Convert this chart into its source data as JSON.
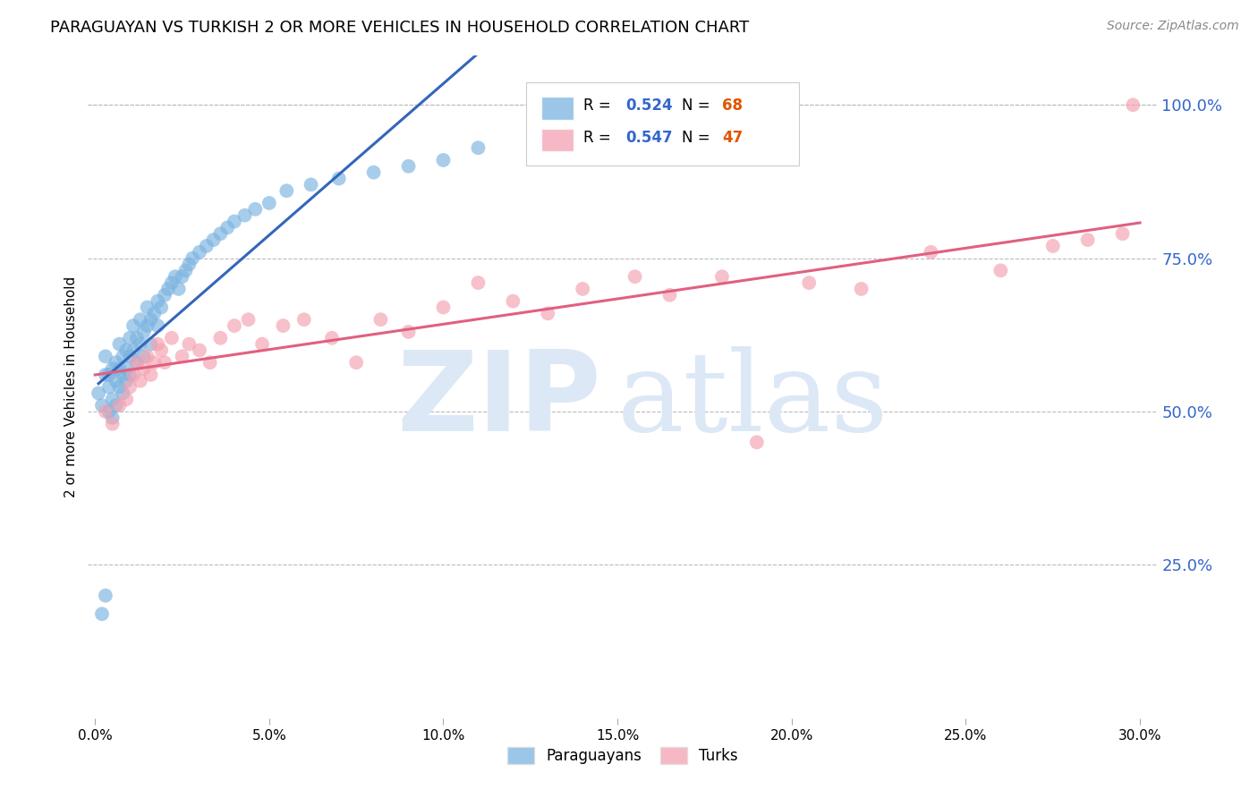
{
  "title": "PARAGUAYAN VS TURKISH 2 OR MORE VEHICLES IN HOUSEHOLD CORRELATION CHART",
  "source": "Source: ZipAtlas.com",
  "ylabel": "2 or more Vehicles in Household",
  "xlabel_ticks": [
    "0.0%",
    "5.0%",
    "10.0%",
    "15.0%",
    "20.0%",
    "25.0%",
    "30.0%"
  ],
  "xlabel_vals": [
    0.0,
    0.05,
    0.1,
    0.15,
    0.2,
    0.25,
    0.3
  ],
  "ylabel_ticks_right": [
    "100.0%",
    "75.0%",
    "50.0%",
    "25.0%"
  ],
  "ylabel_vals_right": [
    1.0,
    0.75,
    0.5,
    0.25
  ],
  "xlim": [
    -0.002,
    0.305
  ],
  "ylim": [
    0.0,
    1.08
  ],
  "paraguayan_R": "0.524",
  "paraguayan_N": "68",
  "turkish_R": "0.547",
  "turkish_N": "47",
  "blue_color": "#7ab3e0",
  "pink_color": "#f4a0b0",
  "blue_line_color": "#3366bb",
  "pink_line_color": "#e06080",
  "watermark_zip": "ZIP",
  "watermark_atlas": "atlas",
  "watermark_color": "#dce8f5",
  "legend_R_color": "#3366cc",
  "legend_N_color": "#e05500",
  "paraguayan_x": [
    0.001,
    0.002,
    0.003,
    0.003,
    0.004,
    0.004,
    0.004,
    0.005,
    0.005,
    0.005,
    0.006,
    0.006,
    0.006,
    0.007,
    0.007,
    0.007,
    0.008,
    0.008,
    0.008,
    0.009,
    0.009,
    0.009,
    0.01,
    0.01,
    0.01,
    0.011,
    0.011,
    0.012,
    0.012,
    0.013,
    0.013,
    0.014,
    0.014,
    0.015,
    0.015,
    0.016,
    0.016,
    0.017,
    0.018,
    0.018,
    0.019,
    0.02,
    0.021,
    0.022,
    0.023,
    0.024,
    0.025,
    0.026,
    0.027,
    0.028,
    0.03,
    0.032,
    0.034,
    0.036,
    0.038,
    0.04,
    0.043,
    0.046,
    0.05,
    0.055,
    0.062,
    0.07,
    0.08,
    0.09,
    0.1,
    0.11,
    0.002,
    0.003
  ],
  "paraguayan_y": [
    0.53,
    0.51,
    0.56,
    0.59,
    0.54,
    0.5,
    0.56,
    0.57,
    0.52,
    0.49,
    0.51,
    0.55,
    0.58,
    0.54,
    0.57,
    0.61,
    0.56,
    0.59,
    0.53,
    0.57,
    0.6,
    0.55,
    0.59,
    0.62,
    0.56,
    0.6,
    0.64,
    0.62,
    0.58,
    0.61,
    0.65,
    0.63,
    0.59,
    0.64,
    0.67,
    0.65,
    0.61,
    0.66,
    0.68,
    0.64,
    0.67,
    0.69,
    0.7,
    0.71,
    0.72,
    0.7,
    0.72,
    0.73,
    0.74,
    0.75,
    0.76,
    0.77,
    0.78,
    0.79,
    0.8,
    0.81,
    0.82,
    0.83,
    0.84,
    0.86,
    0.87,
    0.88,
    0.89,
    0.9,
    0.91,
    0.93,
    0.17,
    0.2
  ],
  "turkish_x": [
    0.003,
    0.005,
    0.007,
    0.009,
    0.01,
    0.011,
    0.012,
    0.013,
    0.014,
    0.015,
    0.016,
    0.017,
    0.018,
    0.019,
    0.02,
    0.022,
    0.025,
    0.027,
    0.03,
    0.033,
    0.036,
    0.04,
    0.044,
    0.048,
    0.054,
    0.06,
    0.068,
    0.075,
    0.082,
    0.09,
    0.1,
    0.11,
    0.12,
    0.13,
    0.14,
    0.155,
    0.165,
    0.18,
    0.19,
    0.205,
    0.22,
    0.24,
    0.26,
    0.275,
    0.285,
    0.295,
    0.298
  ],
  "turkish_y": [
    0.5,
    0.48,
    0.51,
    0.52,
    0.54,
    0.56,
    0.58,
    0.55,
    0.57,
    0.59,
    0.56,
    0.58,
    0.61,
    0.6,
    0.58,
    0.62,
    0.59,
    0.61,
    0.6,
    0.58,
    0.62,
    0.64,
    0.65,
    0.61,
    0.64,
    0.65,
    0.62,
    0.58,
    0.65,
    0.63,
    0.67,
    0.71,
    0.68,
    0.66,
    0.7,
    0.72,
    0.69,
    0.72,
    0.45,
    0.71,
    0.7,
    0.76,
    0.73,
    0.77,
    0.78,
    0.79,
    1.0
  ]
}
